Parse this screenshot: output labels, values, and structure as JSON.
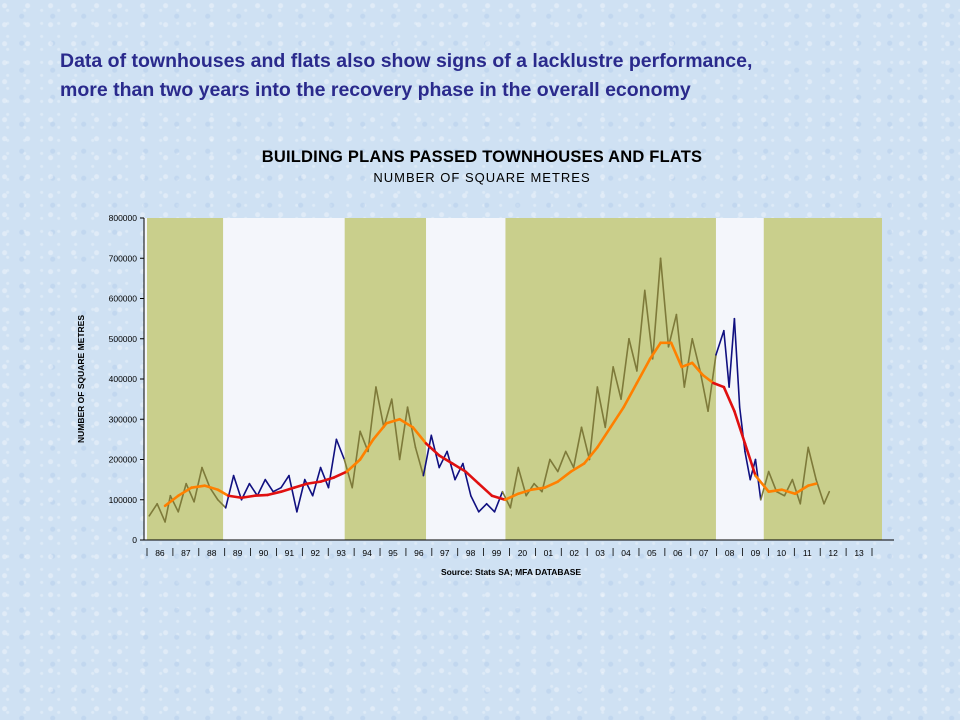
{
  "headline": {
    "line1": "Data of townhouses and flats also show signs of a lacklustre performance,",
    "line2": "more than two years into the recovery phase in the overall economy"
  },
  "chart_data": {
    "type": "line",
    "title": "BUILDING PLANS PASSED  TOWNHOUSES AND FLATS",
    "subtitle": "NUMBER OF SQUARE METRES",
    "ylabel": "NUMBER OF SQUARE METRES",
    "xlabel": "Source: Stats SA; MFA DATABASE",
    "xlim": [
      1986,
      2014
    ],
    "ylim": [
      0,
      800000
    ],
    "y_ticks": [
      0,
      100000,
      200000,
      300000,
      400000,
      500000,
      600000,
      700000,
      800000
    ],
    "x_tick_labels": [
      "86",
      "87",
      "88",
      "89",
      "90",
      "91",
      "92",
      "93",
      "94",
      "95",
      "96",
      "97",
      "98",
      "99",
      "20",
      "01",
      "02",
      "03",
      "04",
      "05",
      "06",
      "07",
      "08",
      "09",
      "10",
      "11",
      "12",
      "13"
    ],
    "grid": false,
    "shaded_periods": [
      [
        1986.0,
        1989.0
      ],
      [
        1993.5,
        1996.7
      ],
      [
        1999.6,
        2007.7
      ],
      [
        2009.4,
        2014.0
      ]
    ],
    "colors": {
      "shading": "#c9cf8c",
      "raw_series_upswing": "#7e7a3a",
      "raw_series_downswing": "#101080",
      "trend_upswing": "#ff8000",
      "trend_downswing": "#e01010",
      "headline": "#2a2a8c"
    },
    "series": [
      {
        "role": "monthly",
        "x": [
          1986.2,
          1986.5,
          1986.8,
          1987.0,
          1987.3,
          1987.6,
          1987.9,
          1988.2,
          1988.5,
          1988.8,
          1989.1,
          1989.4,
          1989.7,
          1990.0,
          1990.3,
          1990.6,
          1990.9,
          1991.2,
          1991.5,
          1991.8,
          1992.1,
          1992.4,
          1992.7,
          1993.0,
          1993.3,
          1993.6,
          1993.9,
          1994.2,
          1994.5,
          1994.8,
          1995.1,
          1995.4,
          1995.7,
          1996.0,
          1996.3,
          1996.6,
          1996.9,
          1997.2,
          1997.5,
          1997.8,
          1998.1,
          1998.4,
          1998.7,
          1999.0,
          1999.3,
          1999.6,
          1999.9,
          2000.2,
          2000.5,
          2000.8,
          2001.1,
          2001.4,
          2001.7,
          2002.0,
          2002.3,
          2002.6,
          2002.9,
          2003.2,
          2003.5,
          2003.8,
          2004.1,
          2004.4,
          2004.7,
          2005.0,
          2005.3,
          2005.6,
          2005.9,
          2006.2,
          2006.5,
          2006.8,
          2007.1,
          2007.4,
          2007.7,
          2008.0,
          2008.2,
          2008.4,
          2008.6,
          2008.8,
          2009.0,
          2009.2,
          2009.4,
          2009.7,
          2010.0,
          2010.3,
          2010.6,
          2010.9,
          2011.2,
          2011.5,
          2011.8,
          2012.0
        ],
        "y": [
          60000,
          90000,
          45000,
          110000,
          70000,
          140000,
          95000,
          180000,
          130000,
          100000,
          80000,
          160000,
          100000,
          140000,
          110000,
          150000,
          120000,
          130000,
          160000,
          70000,
          150000,
          110000,
          180000,
          130000,
          250000,
          200000,
          130000,
          270000,
          220000,
          380000,
          280000,
          350000,
          200000,
          330000,
          230000,
          160000,
          260000,
          180000,
          220000,
          150000,
          190000,
          110000,
          70000,
          90000,
          70000,
          120000,
          80000,
          180000,
          110000,
          140000,
          120000,
          200000,
          170000,
          220000,
          180000,
          280000,
          200000,
          380000,
          280000,
          430000,
          350000,
          500000,
          420000,
          620000,
          450000,
          700000,
          480000,
          560000,
          380000,
          500000,
          420000,
          320000,
          460000,
          520000,
          380000,
          550000,
          330000,
          220000,
          150000,
          200000,
          100000,
          170000,
          120000,
          110000,
          150000,
          90000,
          230000,
          150000,
          90000,
          120000
        ]
      },
      {
        "role": "trend",
        "x": [
          1986.8,
          1987.3,
          1987.8,
          1988.3,
          1988.8,
          1989.2,
          1989.7,
          1990.2,
          1990.7,
          1991.2,
          1991.7,
          1992.2,
          1992.7,
          1993.2,
          1993.7,
          1994.2,
          1994.7,
          1995.2,
          1995.7,
          1996.2,
          1996.7,
          1997.2,
          1997.7,
          1998.2,
          1998.7,
          1999.2,
          1999.7,
          2000.2,
          2000.7,
          2001.2,
          2001.7,
          2002.2,
          2002.7,
          2003.2,
          2003.7,
          2004.2,
          2004.7,
          2005.2,
          2005.6,
          2006.0,
          2006.4,
          2006.8,
          2007.2,
          2007.6,
          2008.0,
          2008.4,
          2008.8,
          2009.2,
          2009.7,
          2010.2,
          2010.7,
          2011.2,
          2011.5
        ],
        "y": [
          85000,
          110000,
          130000,
          135000,
          125000,
          110000,
          105000,
          110000,
          112000,
          120000,
          130000,
          140000,
          145000,
          155000,
          170000,
          200000,
          250000,
          290000,
          300000,
          280000,
          240000,
          210000,
          190000,
          170000,
          140000,
          110000,
          100000,
          115000,
          125000,
          130000,
          145000,
          170000,
          190000,
          230000,
          280000,
          330000,
          390000,
          450000,
          490000,
          490000,
          430000,
          440000,
          410000,
          390000,
          380000,
          320000,
          240000,
          160000,
          120000,
          125000,
          115000,
          135000,
          140000
        ]
      }
    ]
  }
}
